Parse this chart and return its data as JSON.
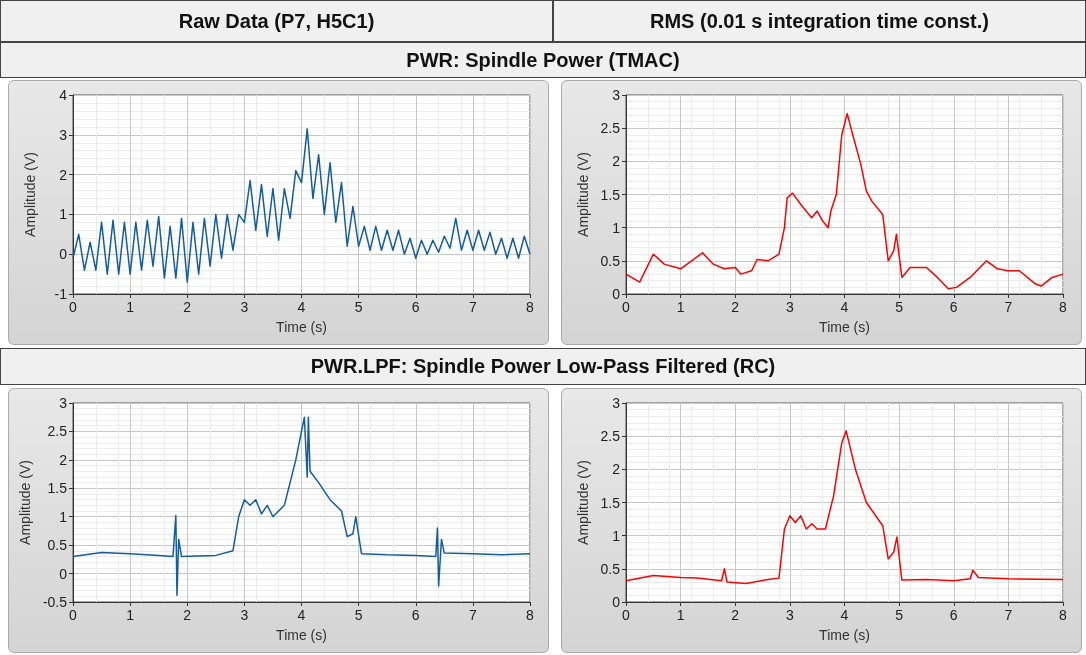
{
  "chart_data": [
    {
      "type": "line",
      "title": "Raw Data (P7, H5C1)",
      "subtitle": "PWR: Spindle Power (TMAC)",
      "xlabel": "Time (s)",
      "ylabel": "Amplitude (V)",
      "xlim": [
        0,
        8
      ],
      "xticks": [
        0,
        1,
        2,
        3,
        4,
        5,
        6,
        7,
        8
      ],
      "ylim": [
        -1,
        4
      ],
      "yticks": [
        -1,
        0,
        1,
        2,
        3,
        4
      ],
      "grid": true,
      "marker": "none",
      "line_style": "solid",
      "series": [
        {
          "color": "#135d9e",
          "x": [
            0,
            0.1,
            0.2,
            0.3,
            0.4,
            0.5,
            0.6,
            0.7,
            0.8,
            0.9,
            1.0,
            1.1,
            1.2,
            1.3,
            1.4,
            1.5,
            1.6,
            1.7,
            1.8,
            1.9,
            2.0,
            2.1,
            2.2,
            2.3,
            2.4,
            2.5,
            2.6,
            2.7,
            2.8,
            2.9,
            3.0,
            3.1,
            3.2,
            3.3,
            3.4,
            3.5,
            3.6,
            3.7,
            3.8,
            3.9,
            4.0,
            4.1,
            4.2,
            4.3,
            4.4,
            4.5,
            4.6,
            4.7,
            4.8,
            4.9,
            5.0,
            5.1,
            5.2,
            5.3,
            5.4,
            5.5,
            5.6,
            5.7,
            5.8,
            5.9,
            6.0,
            6.1,
            6.2,
            6.3,
            6.4,
            6.5,
            6.6,
            6.7,
            6.8,
            6.9,
            7.0,
            7.1,
            7.2,
            7.3,
            7.4,
            7.5,
            7.6,
            7.7,
            7.8,
            7.9,
            8.0
          ],
          "values": [
            -0.1,
            0.5,
            -0.4,
            0.3,
            -0.4,
            0.8,
            -0.5,
            0.85,
            -0.5,
            0.8,
            -0.5,
            0.8,
            -0.4,
            0.85,
            -0.3,
            0.95,
            -0.6,
            0.7,
            -0.6,
            0.9,
            -0.7,
            0.8,
            -0.5,
            0.9,
            -0.3,
            1.0,
            -0.1,
            1.0,
            0.1,
            1.0,
            0.8,
            1.85,
            0.6,
            1.75,
            0.45,
            1.65,
            0.35,
            1.65,
            0.9,
            2.1,
            1.8,
            3.15,
            1.4,
            2.5,
            1.0,
            2.3,
            0.8,
            1.8,
            0.2,
            1.2,
            0.2,
            0.7,
            0.1,
            0.7,
            0.1,
            0.6,
            0.1,
            0.6,
            0.0,
            0.4,
            -0.1,
            0.35,
            0.0,
            0.35,
            0.05,
            0.45,
            0.15,
            0.9,
            0.1,
            0.6,
            0.1,
            0.6,
            0.1,
            0.55,
            0.0,
            0.4,
            -0.1,
            0.4,
            -0.1,
            0.45,
            0.0
          ]
        }
      ]
    },
    {
      "type": "line",
      "title": "RMS (0.01 s integration time const.)",
      "xlabel": "Time (s)",
      "ylabel": "Amplitude (V)",
      "xlim": [
        0,
        8
      ],
      "xticks": [
        0,
        1,
        2,
        3,
        4,
        5,
        6,
        7,
        8
      ],
      "ylim": [
        0,
        3
      ],
      "yticks": [
        0,
        0.5,
        1,
        1.5,
        2,
        2.5,
        3
      ],
      "grid": true,
      "marker": "none",
      "line_style": "solid",
      "series": [
        {
          "color": "#ff0000",
          "x": [
            0,
            0.25,
            0.5,
            0.7,
            1.0,
            1.2,
            1.4,
            1.6,
            1.8,
            2.0,
            2.1,
            2.3,
            2.4,
            2.6,
            2.8,
            2.9,
            2.95,
            3.05,
            3.2,
            3.4,
            3.5,
            3.6,
            3.7,
            3.75,
            3.85,
            3.95,
            4.05,
            4.15,
            4.3,
            4.4,
            4.5,
            4.7,
            4.8,
            4.9,
            4.95,
            5.05,
            5.2,
            5.5,
            5.7,
            5.9,
            6.05,
            6.3,
            6.6,
            6.8,
            7.0,
            7.2,
            7.5,
            7.6,
            7.8,
            8.0
          ],
          "values": [
            0.3,
            0.18,
            0.6,
            0.45,
            0.38,
            0.5,
            0.62,
            0.45,
            0.38,
            0.4,
            0.3,
            0.35,
            0.52,
            0.5,
            0.6,
            1.0,
            1.45,
            1.52,
            1.35,
            1.15,
            1.25,
            1.1,
            1.0,
            1.25,
            1.5,
            2.4,
            2.72,
            2.4,
            1.95,
            1.55,
            1.4,
            1.2,
            0.5,
            0.65,
            0.9,
            0.25,
            0.4,
            0.4,
            0.25,
            0.08,
            0.1,
            0.25,
            0.5,
            0.38,
            0.35,
            0.35,
            0.15,
            0.12,
            0.25,
            0.3
          ]
        }
      ]
    },
    {
      "type": "line",
      "subtitle": "PWR.LPF: Spindle Power Low-Pass Filtered (RC)",
      "xlabel": "Time (s)",
      "ylabel": "Amplitude (V)",
      "xlim": [
        0,
        8
      ],
      "xticks": [
        0,
        1,
        2,
        3,
        4,
        5,
        6,
        7,
        8
      ],
      "ylim": [
        -0.5,
        3
      ],
      "yticks": [
        -0.5,
        0,
        0.5,
        1,
        1.5,
        2,
        2.5,
        3
      ],
      "grid": true,
      "marker": "none",
      "line_style": "solid",
      "series": [
        {
          "color": "#135d9e",
          "x": [
            0,
            0.5,
            1.0,
            1.5,
            1.75,
            1.8,
            1.82,
            1.85,
            1.9,
            2.5,
            2.8,
            2.9,
            3.0,
            3.1,
            3.2,
            3.3,
            3.4,
            3.5,
            3.6,
            3.7,
            3.9,
            4.0,
            4.05,
            4.1,
            4.12,
            4.15,
            4.3,
            4.5,
            4.7,
            4.8,
            4.9,
            4.95,
            5.05,
            5.5,
            6.0,
            6.35,
            6.38,
            6.4,
            6.45,
            6.5,
            7.0,
            7.5,
            8.0
          ],
          "values": [
            0.3,
            0.37,
            0.35,
            0.32,
            0.3,
            1.02,
            -0.38,
            0.6,
            0.3,
            0.32,
            0.4,
            1.0,
            1.3,
            1.2,
            1.3,
            1.05,
            1.2,
            1.0,
            1.1,
            1.2,
            2.0,
            2.5,
            2.75,
            1.7,
            2.75,
            1.8,
            1.6,
            1.3,
            1.1,
            0.65,
            0.7,
            1.0,
            0.35,
            0.33,
            0.32,
            0.3,
            0.8,
            -0.22,
            0.6,
            0.36,
            0.35,
            0.33,
            0.35
          ]
        }
      ]
    },
    {
      "type": "line",
      "xlabel": "Time (s)",
      "ylabel": "Amplitude (V)",
      "xlim": [
        0,
        8
      ],
      "xticks": [
        0,
        1,
        2,
        3,
        4,
        5,
        6,
        7,
        8
      ],
      "ylim": [
        0,
        3
      ],
      "yticks": [
        0,
        0.5,
        1,
        1.5,
        2,
        2.5,
        3
      ],
      "grid": true,
      "marker": "none",
      "line_style": "solid",
      "series": [
        {
          "color": "#ff0000",
          "x": [
            0,
            0.5,
            1.0,
            1.3,
            1.75,
            1.8,
            1.85,
            2.2,
            2.6,
            2.8,
            2.9,
            3.0,
            3.1,
            3.2,
            3.3,
            3.4,
            3.5,
            3.65,
            3.8,
            3.95,
            4.03,
            4.2,
            4.4,
            4.7,
            4.8,
            4.9,
            4.96,
            5.05,
            5.5,
            6.0,
            6.3,
            6.35,
            6.45,
            7.0,
            8.0
          ],
          "values": [
            0.32,
            0.4,
            0.37,
            0.36,
            0.32,
            0.5,
            0.3,
            0.28,
            0.34,
            0.36,
            1.1,
            1.3,
            1.2,
            1.3,
            1.1,
            1.18,
            1.1,
            1.1,
            1.6,
            2.4,
            2.58,
            2.0,
            1.5,
            1.15,
            0.65,
            0.75,
            0.98,
            0.33,
            0.34,
            0.32,
            0.35,
            0.48,
            0.37,
            0.35,
            0.34
          ]
        }
      ]
    }
  ]
}
